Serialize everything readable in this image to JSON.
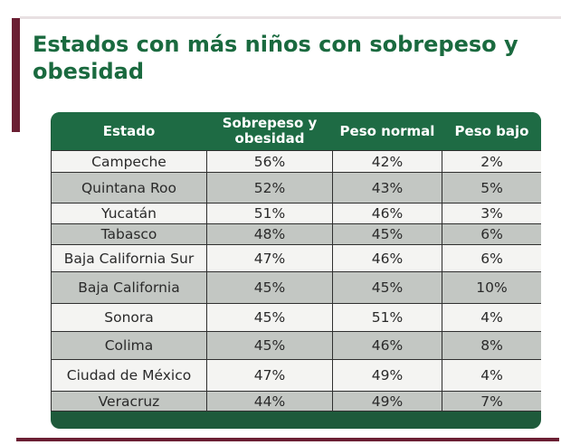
{
  "title": "Estados con más niños con sobrepeso y obesidad",
  "columns": [
    "Estado",
    "Sobrepeso y obesidad",
    "Peso normal",
    "Peso bajo"
  ],
  "rows": [
    {
      "estado": "Campeche",
      "sobrepeso": "56%",
      "normal": "42%",
      "bajo": "2%"
    },
    {
      "estado": "Quintana Roo",
      "sobrepeso": "52%",
      "normal": "43%",
      "bajo": "5%"
    },
    {
      "estado": "Yucatán",
      "sobrepeso": "51%",
      "normal": "46%",
      "bajo": "3%"
    },
    {
      "estado": "Tabasco",
      "sobrepeso": "48%",
      "normal": "45%",
      "bajo": "6%"
    },
    {
      "estado": "Baja California Sur",
      "sobrepeso": "47%",
      "normal": "46%",
      "bajo": "6%"
    },
    {
      "estado": "Baja California",
      "sobrepeso": "45%",
      "normal": "45%",
      "bajo": "10%"
    },
    {
      "estado": "Sonora",
      "sobrepeso": "45%",
      "normal": "51%",
      "bajo": "4%"
    },
    {
      "estado": "Colima",
      "sobrepeso": "45%",
      "normal": "46%",
      "bajo": "8%"
    },
    {
      "estado": "Ciudad de México",
      "sobrepeso": "47%",
      "normal": "49%",
      "bajo": "4%"
    },
    {
      "estado": "Veracruz",
      "sobrepeso": "44%",
      "normal": "49%",
      "bajo": "7%"
    }
  ],
  "colors": {
    "title_green": "#1a6a3f",
    "header_green": "#1e6b44",
    "accent_maroon": "#6b1f33",
    "row_light": "#f4f4f2",
    "row_dark": "#c3c7c3"
  }
}
